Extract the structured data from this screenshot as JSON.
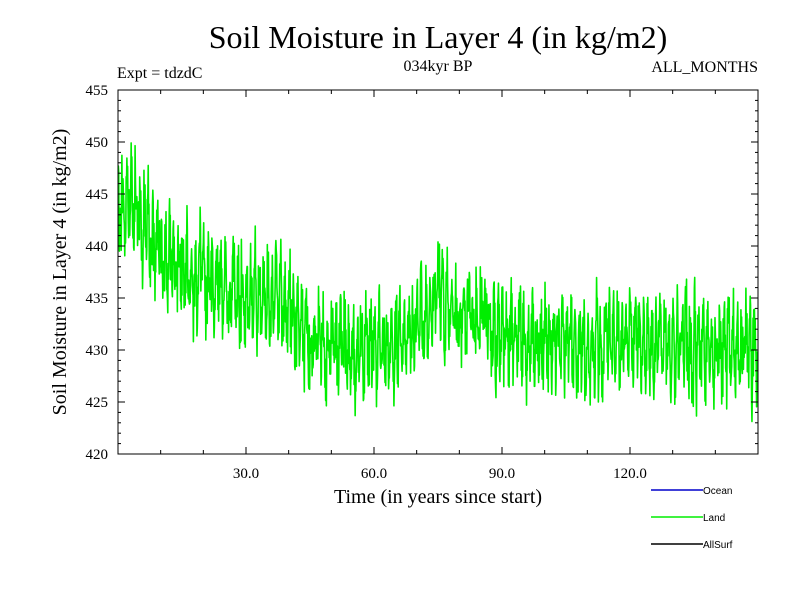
{
  "chart_data": {
    "type": "line",
    "title": "Soil Moisture in Layer 4 (in kg/m2)",
    "subtitle_left": "Expt = tdzdC",
    "subtitle_center": "034kyr BP",
    "subtitle_right": "ALL_MONTHS",
    "xlabel": "Time (in years since start)",
    "ylabel": "Soil Moisture in Layer 4 (in kg/m2)",
    "xlim": [
      0,
      150
    ],
    "ylim": [
      420,
      455
    ],
    "x_ticks": [
      30,
      60,
      90,
      120
    ],
    "x_tick_labels": [
      "30.0",
      "60.0",
      "90.0",
      "120.0"
    ],
    "y_ticks": [
      420,
      425,
      430,
      435,
      440,
      445,
      450,
      455
    ],
    "y_tick_labels": [
      "420",
      "425",
      "430",
      "435",
      "440",
      "445",
      "450",
      "455"
    ],
    "legend": [
      {
        "name": "Ocean",
        "color": "#0000cc"
      },
      {
        "name": "Land",
        "color": "#00ee00"
      },
      {
        "name": "AllSurf",
        "color": "#000000"
      }
    ],
    "series": [
      {
        "name": "Land",
        "color": "#00ee00",
        "samples_per_year": 12,
        "trend": {
          "x": [
            0,
            2,
            5,
            10,
            15,
            20,
            25,
            30,
            35,
            40,
            45,
            50,
            55,
            60,
            65,
            70,
            75,
            80,
            85,
            90,
            95,
            100,
            105,
            110,
            115,
            120,
            125,
            130,
            135,
            140,
            145,
            150
          ],
          "y": [
            444,
            445,
            443,
            439,
            438,
            437,
            436,
            435,
            435,
            434,
            431,
            430,
            430,
            430,
            431,
            432,
            435,
            434,
            433,
            432,
            431,
            431,
            431,
            430,
            431,
            431,
            430,
            431,
            430,
            430,
            430,
            430
          ]
        },
        "noise_amplitude": 3.2,
        "seed": 7
      }
    ]
  }
}
